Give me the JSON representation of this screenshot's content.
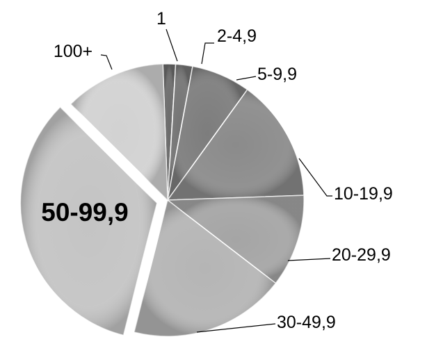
{
  "chart_data": {
    "type": "pie",
    "categories": [
      "1",
      "2-4,9",
      "5-9,9",
      "10-19,9",
      "20-29,9",
      "30-49,9",
      "50-99,9",
      "100+"
    ],
    "values": [
      1.5,
      2.0,
      7.0,
      14.5,
      11.0,
      18.5,
      33.5,
      12.0
    ],
    "colors": [
      "#6b6b6b",
      "#747474",
      "#7d7d7d",
      "#8b8b8b",
      "#a5a5a5",
      "#b5b5b5",
      "#c4c4c4",
      "#d2d2d2"
    ],
    "exploded": [
      "50-99,9"
    ],
    "emphasized_label": "50-99,9",
    "legend": "none"
  }
}
